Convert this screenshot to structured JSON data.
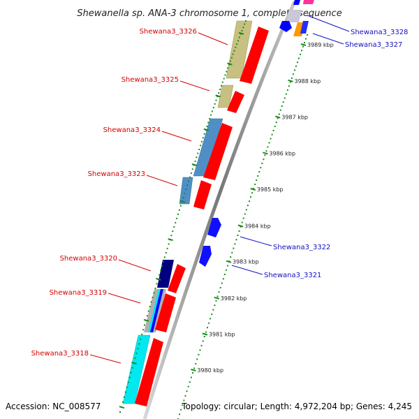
{
  "title": "Shewanella sp. ANA-3 chromosome 1, complete sequence",
  "footer": {
    "accession": "Accession: NC_008577",
    "topology": "Topology: circular; Length: 4,972,204 bp; Genes: 4,245"
  },
  "colors": {
    "background": "#ffffff",
    "red_gene": "#ff0000",
    "olive_gene": "#c8c080",
    "steel_gene": "#4f8fc6",
    "navy_gene": "#000080",
    "cyan_gene": "#00e8f0",
    "blue_gene": "#0000ff",
    "orange_gene": "#ff9900",
    "magenta_gene": "#ff3399",
    "grey_gene": "#b0b0b0",
    "backbone": "#888888",
    "tick_green": "#1a8a1a",
    "label_red": "#d40000",
    "label_blue": "#1010c0"
  },
  "axis": {
    "unit": "kbp",
    "labels": [
      {
        "kbp": 3989,
        "text": "3989 kbp"
      },
      {
        "kbp": 3988,
        "text": "3988 kbp"
      },
      {
        "kbp": 3987,
        "text": "3987 kbp"
      },
      {
        "kbp": 3986,
        "text": "3986 kbp"
      },
      {
        "kbp": 3985,
        "text": "3985 kbp"
      },
      {
        "kbp": 3984,
        "text": "3984 kbp"
      },
      {
        "kbp": 3983,
        "text": "3983 kbp"
      },
      {
        "kbp": 3982,
        "text": "3982 kbp"
      },
      {
        "kbp": 3981,
        "text": "3981 kbp"
      },
      {
        "kbp": 3980,
        "text": "3980 kbp"
      }
    ]
  },
  "gene_labels": [
    {
      "name": "Shewana3_3326",
      "color": "red"
    },
    {
      "name": "Shewana3_3325",
      "color": "red"
    },
    {
      "name": "Shewana3_3324",
      "color": "red"
    },
    {
      "name": "Shewana3_3323",
      "color": "red"
    },
    {
      "name": "Shewana3_3320",
      "color": "red"
    },
    {
      "name": "Shewana3_3319",
      "color": "red"
    },
    {
      "name": "Shewana3_3318",
      "color": "red"
    },
    {
      "name": "Shewana3_3328",
      "color": "blue"
    },
    {
      "name": "Shewana3_3327",
      "color": "blue"
    },
    {
      "name": "Shewana3_3322",
      "color": "blue"
    },
    {
      "name": "Shewana3_3321",
      "color": "blue"
    }
  ]
}
